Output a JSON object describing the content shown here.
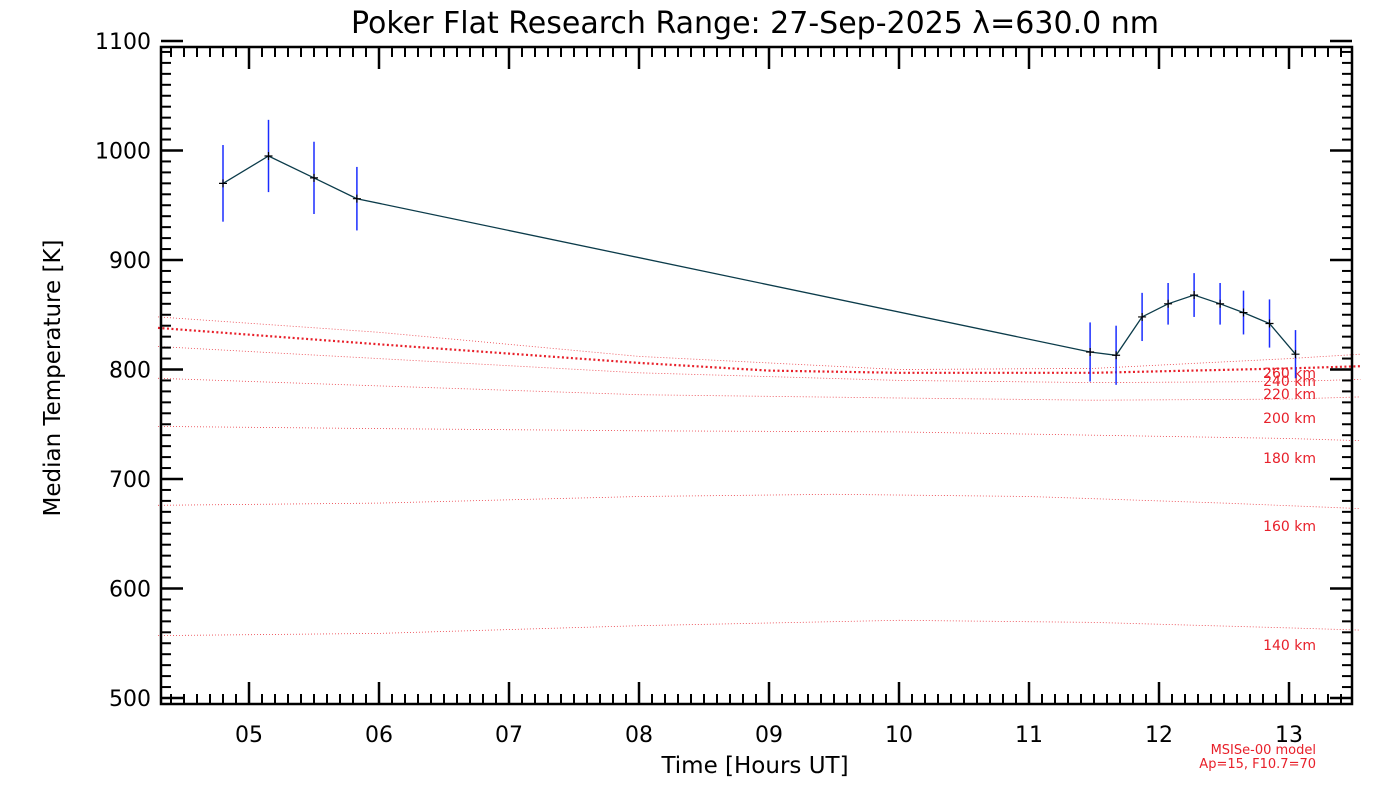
{
  "chart_data": {
    "type": "line",
    "title": "Poker Flat Research Range: 27-Sep-2025 λ=630.0 nm",
    "xlabel": "Time [Hours UT]",
    "ylabel": "Median Temperature [K]",
    "xlim": [
      4.3,
      13.55
    ],
    "ylim": [
      495,
      1100
    ],
    "x_tick_values": [
      5,
      6,
      7,
      8,
      9,
      10,
      11,
      12,
      13
    ],
    "x_tick_labels": [
      "05",
      "06",
      "07",
      "08",
      "09",
      "10",
      "11",
      "12",
      "13"
    ],
    "y_tick_values": [
      500,
      600,
      700,
      800,
      900,
      1000,
      1100
    ],
    "y_tick_labels": [
      "500",
      "600",
      "700",
      "800",
      "900",
      "1000",
      "1100"
    ],
    "colors": {
      "measured_line": "#0b3b4a",
      "error_bar": "#1a2cff",
      "model": "#e8202a",
      "frame": "#000000"
    },
    "measured": {
      "name": "Median Temperature",
      "x": [
        4.8,
        5.15,
        5.5,
        5.83,
        11.47,
        11.67,
        11.87,
        12.07,
        12.27,
        12.47,
        12.65,
        12.85,
        13.05
      ],
      "y": [
        970,
        995,
        975,
        956,
        816,
        813,
        848,
        860,
        868,
        860,
        852,
        842,
        814
      ],
      "err": [
        35,
        33,
        33,
        29,
        27,
        27,
        22,
        19,
        20,
        19,
        20,
        22,
        22
      ]
    },
    "model_series": [
      {
        "name": "140 km",
        "label": "140 km",
        "x": [
          4.3,
          6,
          8,
          10,
          11.5,
          13,
          13.55
        ],
        "y": [
          557,
          559,
          566,
          571,
          569,
          564,
          562
        ]
      },
      {
        "name": "160 km",
        "label": "160 km",
        "x": [
          4.3,
          6,
          8,
          9.5,
          11,
          12.5,
          13.55
        ],
        "y": [
          676,
          678,
          684,
          686,
          684,
          678,
          673
        ]
      },
      {
        "name": "180 km",
        "label": "180 km",
        "x": [
          4.3,
          6,
          8,
          10,
          11.5,
          13,
          13.55
        ],
        "y": [
          748,
          746,
          744,
          743,
          740,
          737,
          735
        ]
      },
      {
        "name": "200 km",
        "label": "200 km",
        "x": [
          4.3,
          6,
          8,
          10,
          11.5,
          13,
          13.55
        ],
        "y": [
          792,
          785,
          777,
          774,
          772,
          773,
          775
        ]
      },
      {
        "name": "220 km",
        "label": "220 km",
        "x": [
          4.3,
          6,
          8,
          10,
          11.5,
          13,
          13.55
        ],
        "y": [
          821,
          810,
          797,
          790,
          788,
          789,
          791
        ]
      },
      {
        "name": "240 km",
        "label": "240 km",
        "x": [
          4.3,
          6,
          8,
          9,
          10,
          11.5,
          13,
          13.55
        ],
        "y": [
          838,
          823,
          806,
          799,
          797,
          797,
          801,
          803
        ]
      },
      {
        "name": "260 km",
        "label": "260 km",
        "x": [
          4.3,
          6,
          8,
          10,
          11.5,
          13,
          13.55
        ],
        "y": [
          848,
          834,
          812,
          800,
          801,
          810,
          814
        ]
      }
    ],
    "model_note_line1": "MSISe-00 model",
    "model_note_line2": "Ap=15, F10.7=70"
  }
}
